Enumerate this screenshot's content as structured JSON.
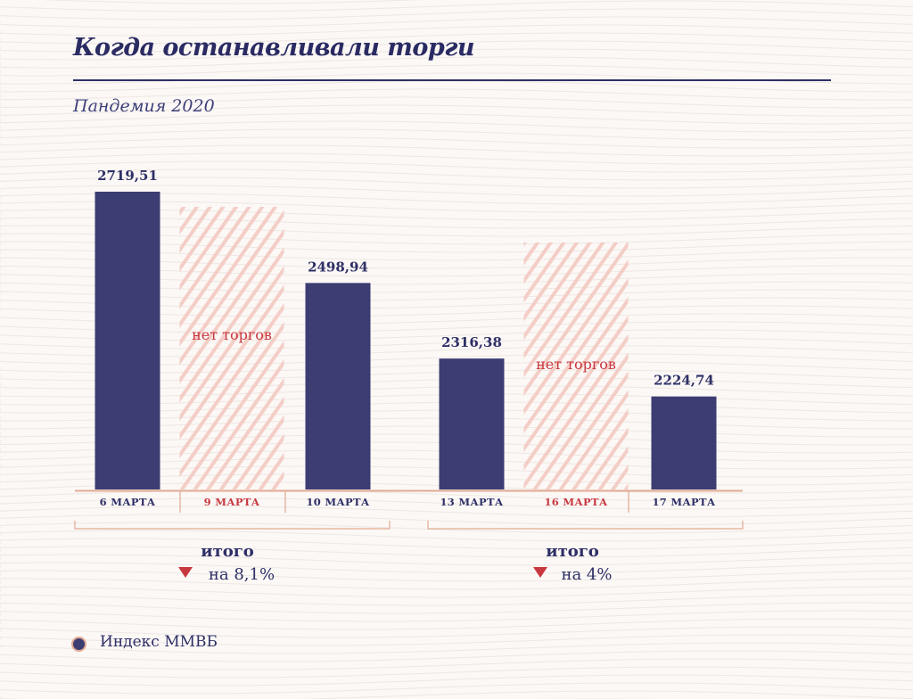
{
  "title": "Когда останавливали торги",
  "subtitle": "Пандемия 2020",
  "colors": {
    "bar": "#3c3d72",
    "text": "#2e2f66",
    "accent_red": "#c8383f",
    "bracket": "#e2aa92",
    "hatch": "#f3c9c1"
  },
  "chart_data": {
    "type": "bar",
    "categories": [
      "6 МАРТА",
      "9 МАРТА",
      "10 МАРТА",
      "13 МАРТА",
      "16 МАРТА",
      "17 МАРТА"
    ],
    "values": [
      2719.51,
      null,
      2498.94,
      2316.38,
      null,
      2224.74
    ],
    "value_labels": [
      "2719,51",
      "",
      "2498,94",
      "2316,38",
      "",
      "2224,74"
    ],
    "no_trading_label": "нет торгов",
    "no_trading_categories": [
      "9 МАРТА",
      "16 МАРТА"
    ],
    "series": [
      {
        "name": "Индекс ММВБ",
        "values": [
          2719.51,
          null,
          2498.94,
          2316.38,
          null,
          2224.74
        ]
      }
    ],
    "legend": "bottom-left",
    "summaries": [
      {
        "label": "итого",
        "change": "на 8,1%",
        "direction": "down",
        "span": [
          "6 МАРТА",
          "10 МАРТА"
        ]
      },
      {
        "label": "итого",
        "change": "на 4%",
        "direction": "down",
        "span": [
          "13 МАРТА",
          "17 МАРТА"
        ]
      }
    ]
  },
  "legend": {
    "label": "Индекс ММВБ"
  }
}
